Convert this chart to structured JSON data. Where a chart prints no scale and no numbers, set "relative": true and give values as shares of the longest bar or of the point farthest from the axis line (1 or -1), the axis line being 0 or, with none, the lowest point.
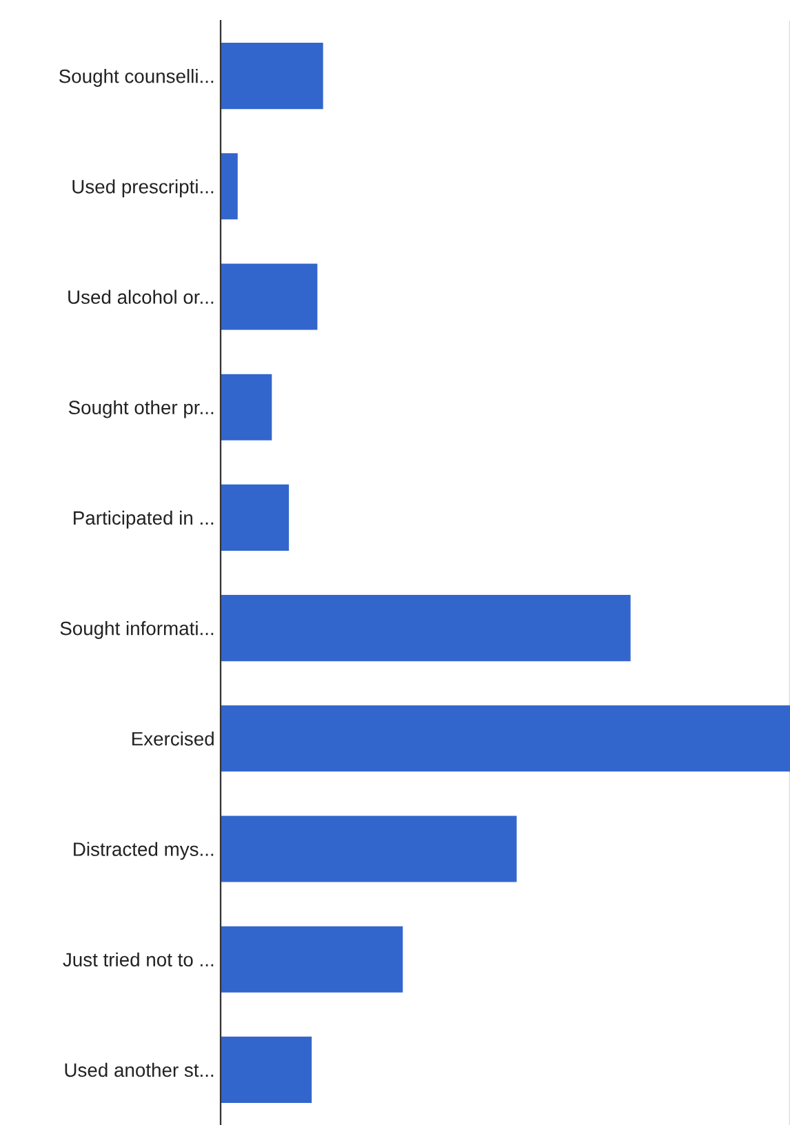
{
  "chart_data": {
    "type": "bar",
    "orientation": "horizontal",
    "relative": true,
    "categories": [
      "Sought counselli...",
      "Used prescripti...",
      "Used alcohol or...",
      "Sought other pr...",
      "Participated in ...",
      "Sought informati...",
      "Exercised",
      "Distracted mys...",
      "Just tried not to ...",
      "Used another st..."
    ],
    "values": [
      0.18,
      0.03,
      0.17,
      0.09,
      0.12,
      0.72,
      1,
      0.52,
      0.32,
      0.16
    ],
    "color": "#3366cc",
    "grid": "x",
    "legend": false
  }
}
